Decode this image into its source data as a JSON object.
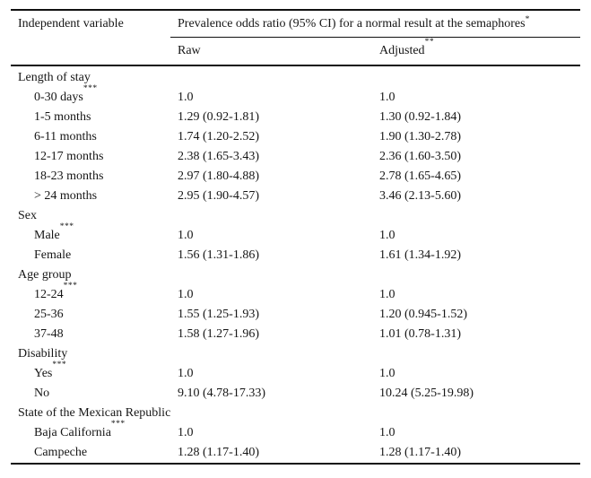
{
  "colors": {
    "text": "#161616",
    "background": "#ffffff",
    "rule": "#111111"
  },
  "table": {
    "header": {
      "col1": "Independent variable",
      "span_label": "Prevalence odds ratio (95% CI) for a normal result at the semaphores",
      "span_sup": "*",
      "raw_label": "Raw",
      "adjusted_label": "Adjusted",
      "adjusted_sup": "**"
    },
    "groups": [
      {
        "label": "Length of stay",
        "rows": [
          {
            "label": "0-30 days",
            "sup": "***",
            "raw": "1.0",
            "adjusted": "1.0"
          },
          {
            "label": "1-5 months",
            "sup": "",
            "raw": "1.29 (0.92-1.81)",
            "adjusted": "1.30 (0.92-1.84)"
          },
          {
            "label": "6-11 months",
            "sup": "",
            "raw": "1.74 (1.20-2.52)",
            "adjusted": "1.90 (1.30-2.78)"
          },
          {
            "label": "12-17 months",
            "sup": "",
            "raw": "2.38 (1.65-3.43)",
            "adjusted": "2.36 (1.60-3.50)"
          },
          {
            "label": "18-23 months",
            "sup": "",
            "raw": "2.97 (1.80-4.88)",
            "adjusted": "2.78 (1.65-4.65)"
          },
          {
            "label": "> 24 months",
            "sup": "",
            "raw": "2.95 (1.90-4.57)",
            "adjusted": "3.46 (2.13-5.60)"
          }
        ]
      },
      {
        "label": "Sex",
        "rows": [
          {
            "label": "Male",
            "sup": "***",
            "raw": "1.0",
            "adjusted": "1.0"
          },
          {
            "label": "Female",
            "sup": "",
            "raw": "1.56 (1.31-1.86)",
            "adjusted": "1.61 (1.34-1.92)"
          }
        ]
      },
      {
        "label": "Age group",
        "rows": [
          {
            "label": "12-24",
            "sup": "***",
            "raw": "1.0",
            "adjusted": "1.0"
          },
          {
            "label": "25-36",
            "sup": "",
            "raw": "1.55 (1.25-1.93)",
            "adjusted": "1.20 (0.945-1.52)"
          },
          {
            "label": "37-48",
            "sup": "",
            "raw": "1.58 (1.27-1.96)",
            "adjusted": "1.01 (0.78-1.31)"
          }
        ]
      },
      {
        "label": "Disability",
        "rows": [
          {
            "label": "Yes",
            "sup": "***",
            "raw": "1.0",
            "adjusted": "1.0"
          },
          {
            "label": "No",
            "sup": "",
            "raw": "9.10 (4.78-17.33)",
            "adjusted": "10.24 (5.25-19.98)"
          }
        ]
      },
      {
        "label": "State of the Mexican Republic",
        "rows": [
          {
            "label": "Baja California",
            "sup": "***",
            "raw": "1.0",
            "adjusted": "1.0"
          },
          {
            "label": "Campeche",
            "sup": "",
            "raw": "1.28 (1.17-1.40)",
            "adjusted": "1.28 (1.17-1.40)"
          }
        ]
      }
    ]
  }
}
